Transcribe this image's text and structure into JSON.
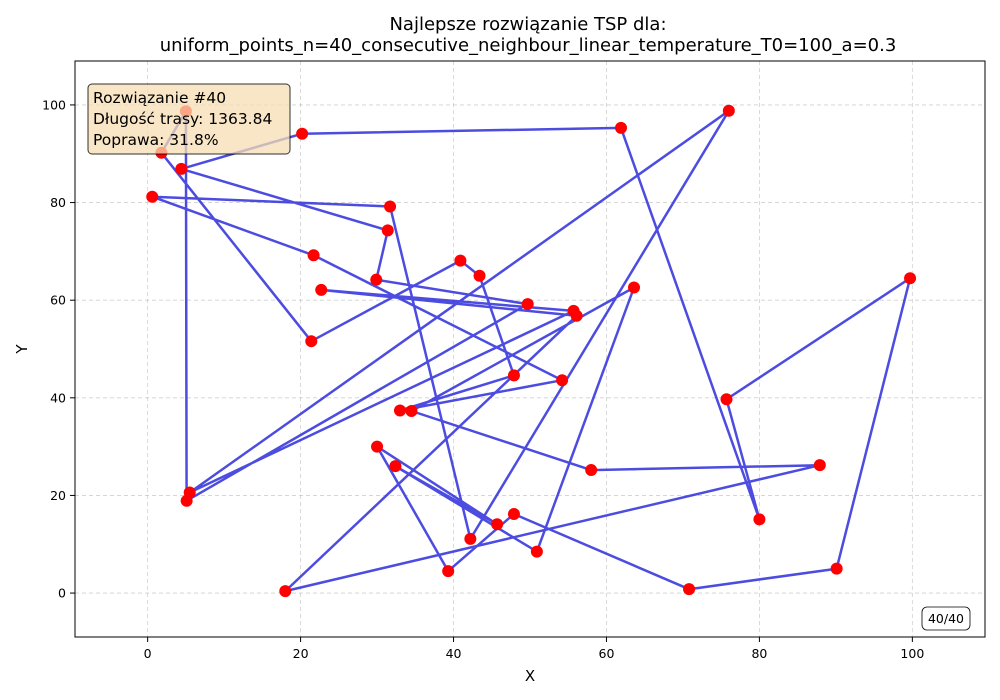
{
  "chart_data": {
    "type": "line",
    "title_line1": "Najlepsze rozwiązanie TSP dla:",
    "title_line2": "uniform_points_n=40_consecutive_neighbour_linear_temperature_T0=100_a=0.3",
    "xlabel": "X",
    "ylabel": "Y",
    "xlim": [
      -9.5,
      109.5
    ],
    "ylim": [
      -9,
      109
    ],
    "xticks": [
      0,
      20,
      40,
      60,
      80,
      100
    ],
    "yticks": [
      0,
      20,
      40,
      60,
      80,
      100
    ],
    "grid": true,
    "route_color": "#3333dd",
    "point_color": "#ff0000",
    "info_box": {
      "line1": "Rozwiązanie #40",
      "line2": "Długość trasy: 1363.84",
      "line3": "Poprawa: 31.8%",
      "background": "#f5deb3"
    },
    "counter": "40/40",
    "route": [
      [
        5.0,
        98.7
      ],
      [
        1.8,
        90.2
      ],
      [
        21.4,
        51.6
      ],
      [
        40.9,
        68.1
      ],
      [
        43.4,
        65.0
      ],
      [
        47.9,
        44.6
      ],
      [
        33.0,
        37.4
      ],
      [
        54.2,
        43.6
      ],
      [
        21.7,
        69.2
      ],
      [
        0.6,
        81.2
      ],
      [
        31.7,
        79.2
      ],
      [
        42.2,
        11.1
      ],
      [
        76.0,
        98.8
      ],
      [
        5.5,
        20.6
      ],
      [
        55.7,
        57.8
      ],
      [
        22.7,
        62.1
      ],
      [
        56.1,
        56.8
      ],
      [
        18.0,
        0.4
      ],
      [
        87.9,
        26.2
      ],
      [
        58.0,
        25.2
      ],
      [
        34.5,
        37.3
      ],
      [
        63.6,
        62.6
      ],
      [
        50.9,
        8.5
      ],
      [
        32.4,
        26.0
      ],
      [
        45.7,
        14.1
      ],
      [
        30.0,
        30.0
      ],
      [
        39.3,
        4.5
      ],
      [
        47.9,
        16.2
      ],
      [
        70.8,
        0.8
      ],
      [
        90.1,
        5.0
      ],
      [
        99.7,
        64.5
      ],
      [
        75.7,
        39.7
      ],
      [
        80.0,
        15.1
      ],
      [
        61.9,
        95.3
      ],
      [
        20.2,
        94.1
      ],
      [
        4.4,
        86.9
      ],
      [
        31.4,
        74.3
      ],
      [
        29.9,
        64.2
      ],
      [
        49.7,
        59.2
      ],
      [
        5.1,
        18.9
      ]
    ]
  }
}
